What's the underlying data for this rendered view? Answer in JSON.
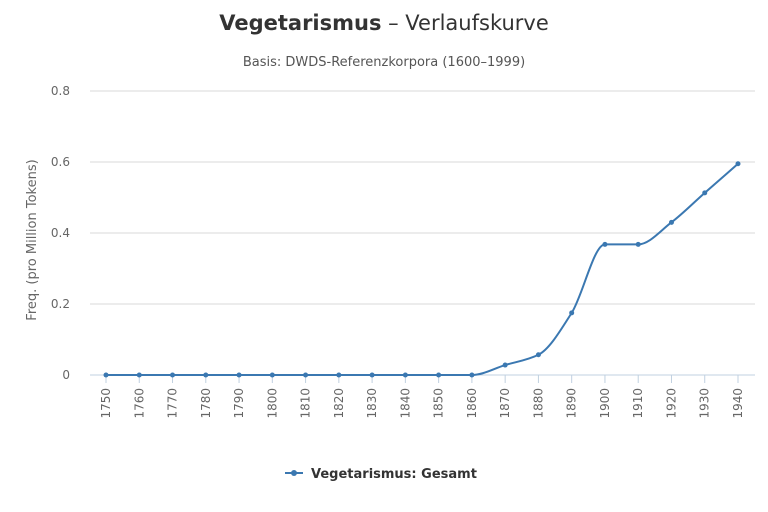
{
  "chart_data": {
    "type": "line",
    "title_bold": "Vegetarismus",
    "title_rest": " – Verlaufskurve",
    "subtitle": "Basis: DWDS-Referenzkorpora (1600–1999)",
    "xlabel": "",
    "ylabel": "Freq. (pro Million Tokens)",
    "ylim": [
      0,
      0.8
    ],
    "yticks": [
      0,
      0.2,
      0.4,
      0.6,
      0.8
    ],
    "ytick_labels": [
      "0",
      "0.2",
      "0.4",
      "0.6",
      "0.8"
    ],
    "x": [
      1750,
      1760,
      1770,
      1780,
      1790,
      1800,
      1810,
      1820,
      1830,
      1840,
      1850,
      1860,
      1870,
      1880,
      1890,
      1900,
      1910,
      1920,
      1930,
      1940
    ],
    "x_labels": [
      "1750",
      "1760",
      "1770",
      "1780",
      "1790",
      "1800",
      "1810",
      "1820",
      "1830",
      "1840",
      "1850",
      "1860",
      "1870",
      "1880",
      "1890",
      "1900",
      "1910",
      "1920",
      "1930",
      "1940"
    ],
    "series": [
      {
        "name": "Vegetarismus: Gesamt",
        "color": "#3b78b1",
        "values": [
          0,
          0,
          0,
          0,
          0,
          0,
          0,
          0,
          0,
          0,
          0,
          0,
          0.028,
          0.057,
          0.175,
          0.368,
          0.368,
          0.43,
          0.513,
          0.595
        ]
      }
    ],
    "grid": true,
    "legend_position": "bottom-center"
  }
}
